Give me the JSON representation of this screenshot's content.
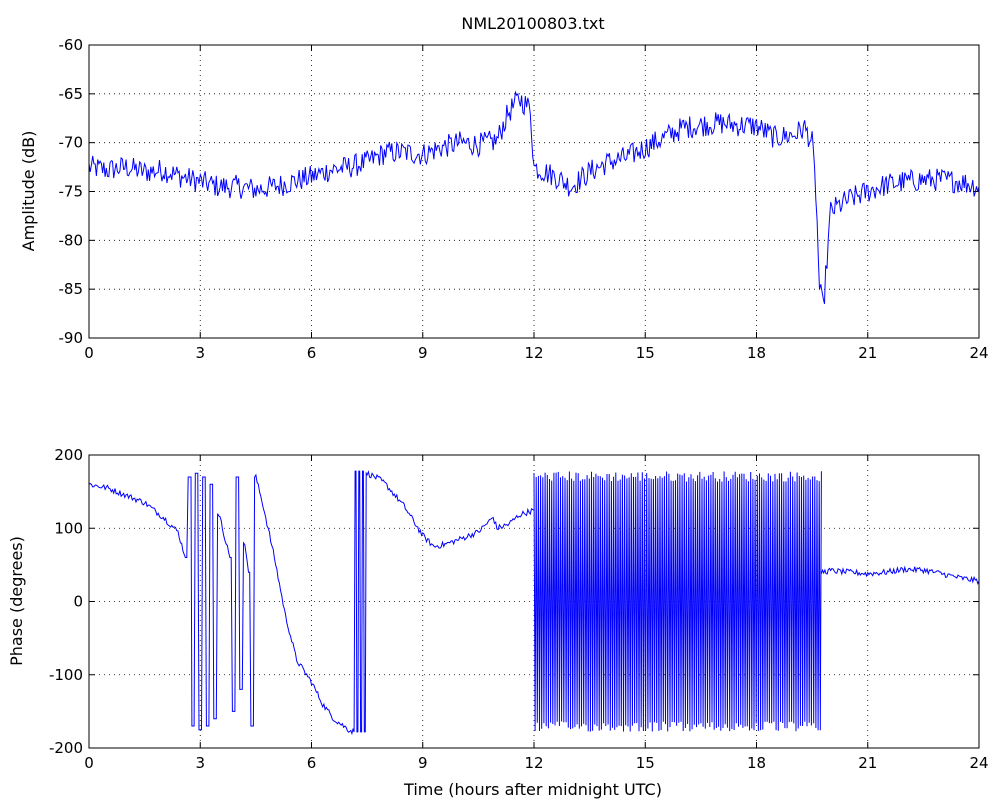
{
  "chart_data": [
    {
      "type": "line",
      "title": "NML20100803.txt",
      "xlabel": "",
      "ylabel": "Amplitude (dB)",
      "xlim": [
        0,
        24
      ],
      "ylim": [
        -90,
        -60
      ],
      "xticks": [
        0,
        3,
        6,
        9,
        12,
        15,
        18,
        21,
        24
      ],
      "yticks": [
        -90,
        -85,
        -80,
        -75,
        -70,
        -65,
        -60
      ],
      "grid": true,
      "color": "#0000ff",
      "series": [
        {
          "x": [
            0,
            0.5,
            1,
            1.5,
            2,
            2.5,
            3,
            3.5,
            4,
            4.5,
            5,
            5.5,
            6,
            6.5,
            7,
            7.5,
            8,
            8.5,
            9,
            9.5,
            10,
            10.5,
            11,
            11.3,
            11.6,
            11.9,
            12,
            12.3,
            12.6,
            13,
            13.5,
            14,
            14.5,
            15,
            15.5,
            16,
            16.5,
            17,
            17.5,
            18,
            18.5,
            19,
            19.3,
            19.5,
            19.6,
            19.7,
            19.8,
            19.9,
            20,
            20.5,
            21,
            21.5,
            22,
            22.5,
            23,
            23.5,
            24
          ],
          "values": [
            -72.5,
            -72.8,
            -72.5,
            -73,
            -72.8,
            -73.5,
            -74,
            -74.5,
            -74.5,
            -74.8,
            -74.5,
            -74,
            -73.5,
            -72.8,
            -72.5,
            -72,
            -71,
            -71,
            -71.2,
            -70.5,
            -70,
            -70.2,
            -69.8,
            -67,
            -65.5,
            -66.5,
            -72.5,
            -73,
            -73.5,
            -74.5,
            -73,
            -72,
            -71.5,
            -70.5,
            -69.5,
            -68.5,
            -68.2,
            -68,
            -68.2,
            -68.3,
            -69.5,
            -69.2,
            -68.5,
            -70,
            -75,
            -85,
            -87,
            -82,
            -77,
            -75.8,
            -75,
            -74.3,
            -74,
            -73.8,
            -73.8,
            -74,
            -74.5
          ]
        }
      ]
    },
    {
      "type": "line",
      "title": "",
      "xlabel": "Time (hours after midnight UTC)",
      "ylabel": "Phase (degrees)",
      "xlim": [
        0,
        24
      ],
      "ylim": [
        -200,
        200
      ],
      "xticks": [
        0,
        3,
        6,
        9,
        12,
        15,
        18,
        21,
        24
      ],
      "yticks": [
        -200,
        -100,
        0,
        100,
        200
      ],
      "grid": true,
      "color": "#0000ff",
      "series": [
        {
          "x": [
            0,
            0.5,
            1,
            1.5,
            2,
            2.4,
            2.6,
            2.75,
            2.8,
            2.9,
            3,
            3.1,
            3.2,
            3.3,
            3.4,
            3.5,
            3.6,
            3.8,
            3.9,
            4.0,
            4.1,
            4.2,
            4.3,
            4.4,
            4.5,
            4.7,
            5.0,
            5.3,
            5.6,
            6.0,
            6.3,
            6.6,
            7.0,
            7.15,
            7.2,
            7.25,
            7.3,
            7.35,
            7.4,
            7.45,
            7.5,
            7.8,
            8.0,
            8.5,
            9.0,
            9.3,
            9.6,
            10.0,
            10.5,
            10.9,
            11.0,
            11.3,
            11.6,
            12.0
          ],
          "values": [
            160,
            155,
            145,
            135,
            115,
            95,
            60,
            170,
            -170,
            175,
            -175,
            170,
            -170,
            160,
            -160,
            120,
            100,
            60,
            -150,
            170,
            -120,
            80,
            40,
            -170,
            170,
            130,
            60,
            -20,
            -80,
            -110,
            -140,
            -160,
            -175,
            -178,
            178,
            -178,
            178,
            -178,
            178,
            -178,
            175,
            168,
            160,
            130,
            90,
            75,
            78,
            85,
            95,
            115,
            100,
            105,
            118,
            125
          ]
        },
        {
          "x": [
            12,
            19.75
          ],
          "values": [
            178,
            -178
          ],
          "note_type": "oscillation"
        },
        {
          "x": [
            19.75,
            20.0,
            20.5,
            21.0,
            21.5,
            22.0,
            22.5,
            23.0,
            23.5,
            24.0
          ],
          "values": [
            40,
            42,
            40,
            38,
            40,
            44,
            43,
            38,
            32,
            28
          ]
        }
      ]
    }
  ]
}
